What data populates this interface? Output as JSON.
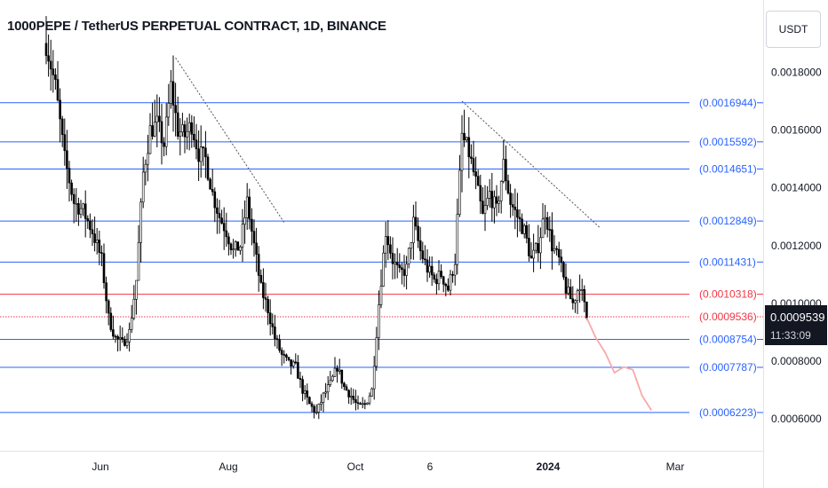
{
  "header": {
    "title": "1000PEPE / TetherUS PERPETUAL CONTRACT, 1D, BINANCE",
    "currency_button": "USDT"
  },
  "last_price": {
    "value": "0.0009539",
    "countdown": "11:33:09"
  },
  "chart_data": {
    "type": "candlestick",
    "title": "1000PEPE / TetherUS PERPETUAL CONTRACT, 1D, BINANCE",
    "ylim": [
      0.00049,
      0.00205
    ],
    "y_ticks": [
      "0.0018000",
      "0.0016000",
      "0.0014000",
      "0.0012000",
      "0.0010000",
      "0.0008000",
      "0.0006000"
    ],
    "x_ticks": [
      "Jun",
      "Aug",
      "Oct",
      "6",
      "2024",
      "Mar"
    ],
    "grid": false,
    "colors": {
      "level_line": "#2962ff",
      "red_level": "#f23645",
      "candle": "#000000",
      "projection": "#f7a9a8",
      "trendline": "#555555"
    },
    "levels": [
      {
        "value": 0.0016944,
        "label": "(0.0016944)",
        "color": "#2962ff"
      },
      {
        "value": 0.0015592,
        "label": "(0.0015592)",
        "color": "#2962ff"
      },
      {
        "value": 0.0014651,
        "label": "(0.0014651)",
        "color": "#2962ff"
      },
      {
        "value": 0.0012849,
        "label": "(0.0012849)",
        "color": "#2962ff"
      },
      {
        "value": 0.0011431,
        "label": "(0.0011431)",
        "color": "#2962ff"
      },
      {
        "value": 0.0010318,
        "label": "(0.0010318)",
        "color": "#f23645"
      },
      {
        "value": 0.0009536,
        "label": "(0.0009536)",
        "color": "#f23645",
        "dotted": true
      },
      {
        "value": 0.0008754,
        "label": "(0.0008754)",
        "color": "#2962ff"
      },
      {
        "value": 0.0007787,
        "label": "(0.0007787)",
        "color": "#2962ff"
      },
      {
        "value": 0.0006223,
        "label": "(0.0006223)",
        "color": "#2962ff"
      }
    ],
    "price_path": [
      [
        0,
        0.0019
      ],
      [
        4,
        0.00175
      ],
      [
        8,
        0.0015
      ],
      [
        12,
        0.00135
      ],
      [
        16,
        0.00132
      ],
      [
        20,
        0.00125
      ],
      [
        24,
        0.00115
      ],
      [
        27,
        0.00095
      ],
      [
        30,
        0.00088
      ],
      [
        33,
        0.00086
      ],
      [
        36,
        0.0009
      ],
      [
        39,
        0.00108
      ],
      [
        42,
        0.00145
      ],
      [
        45,
        0.0016
      ],
      [
        48,
        0.00162
      ],
      [
        51,
        0.00155
      ],
      [
        54,
        0.00175
      ],
      [
        57,
        0.0016
      ],
      [
        60,
        0.00158
      ],
      [
        63,
        0.00162
      ],
      [
        66,
        0.00152
      ],
      [
        69,
        0.0015
      ],
      [
        72,
        0.00138
      ],
      [
        75,
        0.0013
      ],
      [
        78,
        0.00125
      ],
      [
        81,
        0.00118
      ],
      [
        84,
        0.0012
      ],
      [
        87,
        0.00135
      ],
      [
        90,
        0.0012
      ],
      [
        93,
        0.00105
      ],
      [
        96,
        0.00098
      ],
      [
        99,
        0.00088
      ],
      [
        102,
        0.00082
      ],
      [
        105,
        0.00079
      ],
      [
        108,
        0.00078
      ],
      [
        111,
        0.0007
      ],
      [
        114,
        0.00065
      ],
      [
        117,
        0.00062
      ],
      [
        120,
        0.00068
      ],
      [
        123,
        0.00072
      ],
      [
        126,
        0.00078
      ],
      [
        129,
        0.00071
      ],
      [
        132,
        0.00068
      ],
      [
        135,
        0.00064
      ],
      [
        138,
        0.00065
      ],
      [
        141,
        0.0007
      ],
      [
        144,
        0.001
      ],
      [
        147,
        0.00125
      ],
      [
        150,
        0.00115
      ],
      [
        153,
        0.0011
      ],
      [
        156,
        0.00112
      ],
      [
        159,
        0.00128
      ],
      [
        162,
        0.00118
      ],
      [
        165,
        0.00112
      ],
      [
        168,
        0.00108
      ],
      [
        171,
        0.0011
      ],
      [
        174,
        0.00105
      ],
      [
        177,
        0.00115
      ],
      [
        180,
        0.00158
      ],
      [
        183,
        0.00152
      ],
      [
        186,
        0.00142
      ],
      [
        189,
        0.0013
      ],
      [
        192,
        0.00138
      ],
      [
        195,
        0.00132
      ],
      [
        198,
        0.00148
      ],
      [
        201,
        0.00135
      ],
      [
        204,
        0.0013
      ],
      [
        207,
        0.00125
      ],
      [
        210,
        0.00115
      ],
      [
        213,
        0.0012
      ],
      [
        216,
        0.00132
      ],
      [
        219,
        0.0012
      ],
      [
        222,
        0.00115
      ],
      [
        225,
        0.00105
      ],
      [
        228,
        0.001
      ],
      [
        231,
        0.00107
      ],
      [
        234,
        0.00095
      ]
    ],
    "projection_path": [
      [
        234,
        0.00095
      ],
      [
        238,
        0.00088
      ],
      [
        242,
        0.00083
      ],
      [
        246,
        0.00076
      ],
      [
        250,
        0.00078
      ],
      [
        254,
        0.00077
      ],
      [
        258,
        0.00068
      ],
      [
        262,
        0.00063
      ]
    ],
    "trendlines": [
      {
        "from": [
          56,
          0.00185
        ],
        "to": [
          103,
          0.00128
        ]
      },
      {
        "from": [
          180,
          0.0017
        ],
        "to": [
          240,
          0.00126
        ]
      }
    ],
    "x_range": [
      0,
      280
    ]
  }
}
